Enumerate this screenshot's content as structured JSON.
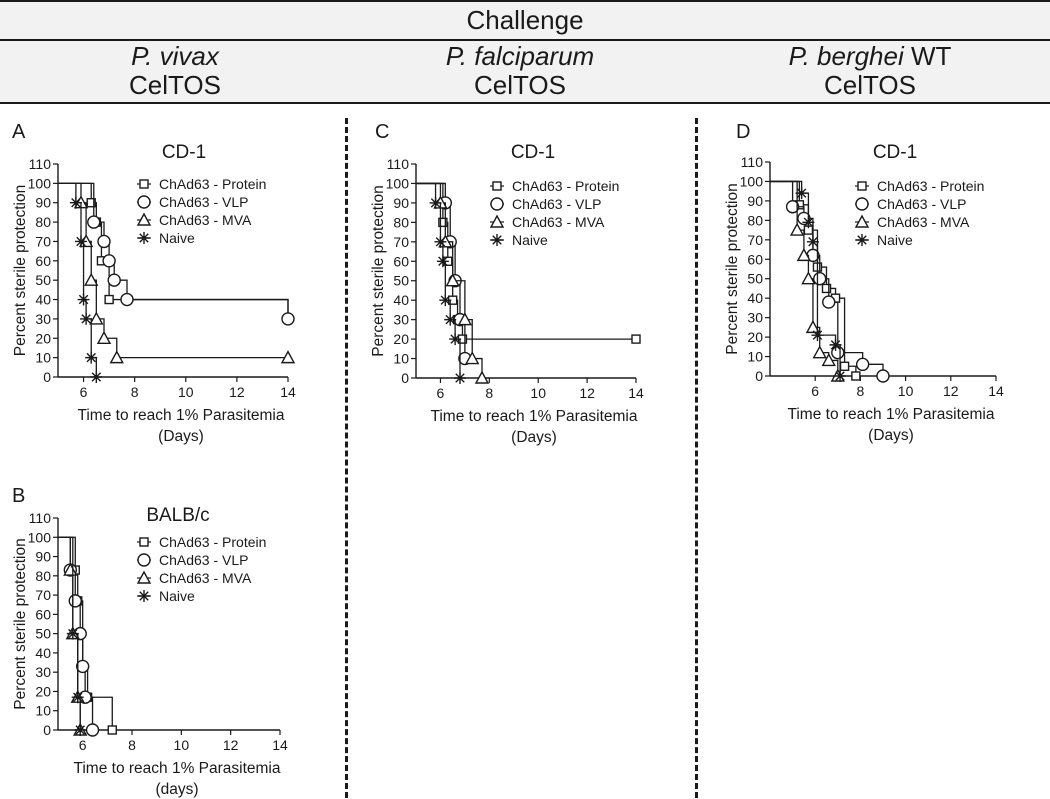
{
  "header": {
    "title": "Challenge",
    "columns": [
      {
        "species": "P. vivax",
        "suffix": "",
        "antigen": "CelTOS"
      },
      {
        "species": "P. falciparum",
        "suffix": "",
        "antigen": "CelTOS"
      },
      {
        "species": "P. berghei",
        "suffix": " WT",
        "antigen": "CelTOS"
      }
    ]
  },
  "chart_data": [
    {
      "type": "line",
      "step": true,
      "panel_letter": "A",
      "title": "CD-1",
      "xlabel": "Time to reach 1% Parasitemia",
      "xlabel2": "(Days)",
      "ylabel": "Percent sterile protection",
      "xlim": [
        5,
        14
      ],
      "ylim": [
        0,
        110
      ],
      "xticks": [
        6,
        8,
        10,
        12,
        14
      ],
      "yticks": [
        0,
        10,
        20,
        30,
        40,
        50,
        60,
        70,
        80,
        90,
        100,
        110
      ],
      "legend_position": "top-right",
      "series": [
        {
          "name": "ChAd63 - Protein",
          "marker": "square",
          "x": [
            5,
            6.3,
            6.5,
            6.7,
            7.0,
            14
          ],
          "y": [
            100,
            90,
            80,
            60,
            40,
            30
          ]
        },
        {
          "name": "ChAd63 - VLP",
          "marker": "circle",
          "x": [
            5,
            6.4,
            6.8,
            7.0,
            7.2,
            7.7,
            14
          ],
          "y": [
            100,
            80,
            70,
            60,
            50,
            40,
            30
          ]
        },
        {
          "name": "ChAd63 - MVA",
          "marker": "triangle",
          "x": [
            5,
            5.9,
            6.1,
            6.3,
            6.5,
            6.8,
            7.3,
            14
          ],
          "y": [
            100,
            90,
            70,
            50,
            30,
            20,
            10,
            10
          ]
        },
        {
          "name": "Naive",
          "marker": "star",
          "x": [
            5,
            5.7,
            5.9,
            6.0,
            6.1,
            6.3,
            6.5
          ],
          "y": [
            100,
            90,
            70,
            40,
            30,
            10,
            0
          ]
        }
      ]
    },
    {
      "type": "line",
      "step": true,
      "panel_letter": "B",
      "title": "BALB/c",
      "xlabel": "Time to reach 1% Parasitemia",
      "xlabel2": "(days)",
      "ylabel": "Percent sterile protection",
      "xlim": [
        5,
        14
      ],
      "ylim": [
        0,
        110
      ],
      "xticks": [
        6,
        8,
        10,
        12,
        14
      ],
      "yticks": [
        0,
        10,
        20,
        30,
        40,
        50,
        60,
        70,
        80,
        90,
        100,
        110
      ],
      "legend_position": "top-right",
      "series": [
        {
          "name": "ChAd63 - Protein",
          "marker": "square",
          "x": [
            5,
            5.7,
            5.8,
            6.0,
            6.2,
            7.2
          ],
          "y": [
            100,
            83,
            67,
            33,
            17,
            0
          ]
        },
        {
          "name": "ChAd63 - VLP",
          "marker": "circle",
          "x": [
            5,
            5.5,
            5.7,
            5.9,
            6.0,
            6.1,
            6.4
          ],
          "y": [
            100,
            83,
            67,
            50,
            33,
            17,
            0
          ]
        },
        {
          "name": "ChAd63 - MVA",
          "marker": "triangle",
          "x": [
            5,
            5.5,
            5.6,
            5.8,
            5.9
          ],
          "y": [
            100,
            83,
            50,
            17,
            0
          ]
        },
        {
          "name": "Naive",
          "marker": "star",
          "x": [
            5,
            5.6,
            5.8,
            5.9
          ],
          "y": [
            100,
            50,
            17,
            0
          ]
        }
      ]
    },
    {
      "type": "line",
      "step": true,
      "panel_letter": "C",
      "title": "CD-1",
      "xlabel": "Time to reach 1% Parasitemia",
      "xlabel2": "(Days)",
      "ylabel": "Percent sterile protection",
      "xlim": [
        5,
        14
      ],
      "ylim": [
        0,
        110
      ],
      "xticks": [
        6,
        8,
        10,
        12,
        14
      ],
      "yticks": [
        0,
        10,
        20,
        30,
        40,
        50,
        60,
        70,
        80,
        90,
        100,
        110
      ],
      "legend_position": "top-right",
      "series": [
        {
          "name": "ChAd63 - Protein",
          "marker": "square",
          "x": [
            5,
            6.1,
            6.3,
            6.5,
            6.7,
            6.9,
            14
          ],
          "y": [
            100,
            80,
            60,
            40,
            30,
            20,
            20
          ]
        },
        {
          "name": "ChAd63 - VLP",
          "marker": "circle",
          "x": [
            5,
            6.2,
            6.4,
            6.6,
            6.8,
            7.0
          ],
          "y": [
            100,
            90,
            70,
            50,
            30,
            10
          ]
        },
        {
          "name": "ChAd63 - MVA",
          "marker": "triangle",
          "x": [
            5,
            6.0,
            6.2,
            6.5,
            7.0,
            7.3,
            7.7
          ],
          "y": [
            100,
            90,
            70,
            50,
            30,
            10,
            0
          ]
        },
        {
          "name": "Naive",
          "marker": "star",
          "x": [
            5,
            5.8,
            6.0,
            6.1,
            6.2,
            6.4,
            6.6,
            6.8
          ],
          "y": [
            100,
            90,
            70,
            60,
            40,
            30,
            20,
            0
          ]
        }
      ]
    },
    {
      "type": "line",
      "step": true,
      "panel_letter": "D",
      "title": "CD-1",
      "xlabel": "Time to reach 1% Parasitemia",
      "xlabel2": "(Days)",
      "ylabel": "Percent sterile protection",
      "xlim": [
        4,
        14
      ],
      "ylim": [
        0,
        110
      ],
      "xticks": [
        6,
        8,
        10,
        12,
        14
      ],
      "yticks": [
        0,
        10,
        20,
        30,
        40,
        50,
        60,
        70,
        80,
        90,
        100,
        110
      ],
      "legend_position": "top-right",
      "series": [
        {
          "name": "ChAd63 - Protein",
          "marker": "square",
          "x": [
            4,
            5.3,
            5.7,
            6.1,
            6.5,
            6.9,
            7.3,
            7.8
          ],
          "y": [
            100,
            88,
            75,
            56,
            45,
            40,
            5,
            0
          ]
        },
        {
          "name": "ChAd63 - VLP",
          "marker": "circle",
          "x": [
            4,
            5.0,
            5.5,
            5.9,
            6.2,
            6.6,
            7.0,
            8.1,
            9.0
          ],
          "y": [
            100,
            87,
            81,
            62,
            50,
            38,
            12,
            6,
            0
          ]
        },
        {
          "name": "ChAd63 - MVA",
          "marker": "triangle",
          "x": [
            4,
            5.2,
            5.5,
            5.7,
            5.9,
            6.2,
            6.6,
            7.0
          ],
          "y": [
            100,
            75,
            62,
            50,
            25,
            12,
            8,
            0
          ]
        },
        {
          "name": "Naive",
          "marker": "star",
          "x": [
            4,
            5.4,
            5.7,
            5.9,
            6.1,
            6.9,
            7.1
          ],
          "y": [
            100,
            94,
            79,
            69,
            21,
            16,
            0
          ]
        }
      ]
    }
  ]
}
